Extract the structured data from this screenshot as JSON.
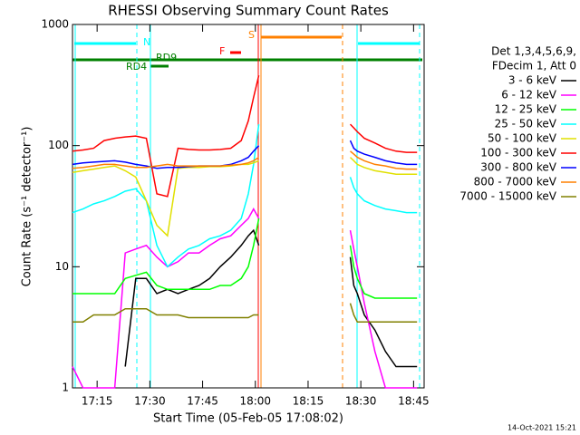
{
  "chart_data": {
    "type": "line",
    "title": "RHESSI Observing Summary Count Rates",
    "x_label": "Start Time (05-Feb-05 17:08:02)",
    "y_label": "Count Rate (s⁻¹ detector⁻¹)",
    "footer": "14-Oct-2021 15:21",
    "legend_title": [
      "Det 1,3,4,5,6,9,",
      "FDecim 1, Att 0"
    ],
    "legend_position": "right",
    "log_scale": true,
    "grid": false,
    "annotations": [
      "N",
      "S",
      "F",
      "RD4",
      "RD9"
    ],
    "x": [
      8,
      11,
      14,
      17,
      20,
      23,
      26,
      29,
      32,
      35,
      38,
      41,
      44,
      47,
      50,
      53,
      56,
      58,
      59.5,
      61,
      75,
      87,
      88,
      89,
      91,
      94,
      97,
      100,
      103,
      106
    ],
    "xlim": [
      8,
      108
    ],
    "xticks": [
      {
        "value": 15,
        "label": "17:15"
      },
      {
        "value": 30,
        "label": "17:30"
      },
      {
        "value": 45,
        "label": "17:45"
      },
      {
        "value": 60,
        "label": "18:00"
      },
      {
        "value": 75,
        "label": "18:15"
      },
      {
        "value": 90,
        "label": "18:30"
      },
      {
        "value": 105,
        "label": "18:45"
      }
    ],
    "ylim": [
      1,
      1000
    ],
    "yticks": [
      1,
      10,
      100,
      1000
    ],
    "series": [
      {
        "name": "3 - 6 keV",
        "color": "#000000",
        "values": [
          null,
          null,
          null,
          null,
          null,
          1.5,
          8,
          8,
          6,
          6.5,
          6,
          6.5,
          7,
          8,
          10,
          12,
          15,
          18,
          20,
          15,
          null,
          12,
          7,
          6,
          4,
          3,
          2,
          1.5,
          1.5,
          1.5
        ]
      },
      {
        "name": "6 - 12 keV",
        "color": "#ff00ff",
        "values": [
          1.5,
          1,
          1,
          1,
          1,
          13,
          14,
          15,
          12,
          10,
          11,
          13,
          13,
          15,
          17,
          18,
          22,
          25,
          30,
          25,
          null,
          20,
          14,
          10,
          5,
          2,
          1,
          1,
          1,
          1
        ]
      },
      {
        "name": "12 - 25 keV",
        "color": "#00ff00",
        "values": [
          6,
          6,
          6,
          6,
          6,
          8,
          8.5,
          9,
          7,
          6.5,
          6.5,
          6.5,
          6.5,
          6.5,
          7,
          7,
          8,
          10,
          15,
          25,
          null,
          15,
          10,
          8,
          6,
          5.5,
          5.5,
          5.5,
          5.5,
          5.5
        ]
      },
      {
        "name": "25 - 50 keV",
        "color": "#00ffff",
        "values": [
          28,
          30,
          33,
          35,
          38,
          42,
          44,
          35,
          15,
          10,
          12,
          14,
          15,
          17,
          18,
          20,
          25,
          40,
          70,
          150,
          null,
          55,
          45,
          40,
          35,
          32,
          30,
          29,
          28,
          28
        ]
      },
      {
        "name": "50 - 100 keV",
        "color": "#e0e000",
        "values": [
          60,
          62,
          64,
          66,
          68,
          62,
          55,
          35,
          22,
          18,
          65,
          66,
          66,
          67,
          67,
          68,
          70,
          70,
          72,
          75,
          null,
          80,
          75,
          70,
          66,
          62,
          60,
          58,
          58,
          58
        ]
      },
      {
        "name": "100 - 300 keV",
        "color": "#ff0000",
        "values": [
          90,
          92,
          95,
          110,
          115,
          118,
          120,
          115,
          40,
          38,
          95,
          93,
          92,
          92,
          93,
          95,
          110,
          160,
          250,
          380,
          null,
          150,
          140,
          130,
          115,
          105,
          95,
          90,
          88,
          88
        ]
      },
      {
        "name": "300 - 800 keV",
        "color": "#0000ff",
        "values": [
          70,
          72,
          73,
          74,
          75,
          73,
          70,
          68,
          65,
          66,
          66,
          67,
          68,
          68,
          68,
          70,
          75,
          80,
          90,
          100,
          null,
          110,
          95,
          90,
          85,
          80,
          75,
          72,
          70,
          70
        ]
      },
      {
        "name": "800 - 7000 keV",
        "color": "#ff8000",
        "values": [
          65,
          66,
          68,
          70,
          70,
          68,
          66,
          66,
          68,
          70,
          68,
          68,
          68,
          68,
          68,
          69,
          70,
          72,
          75,
          80,
          null,
          90,
          85,
          80,
          75,
          70,
          68,
          65,
          64,
          64
        ]
      },
      {
        "name": "7000 - 15000 keV",
        "color": "#808000",
        "values": [
          3.5,
          3.5,
          4,
          4,
          4,
          4.5,
          4.5,
          4.5,
          4,
          4,
          4,
          3.8,
          3.8,
          3.8,
          3.8,
          3.8,
          3.8,
          3.8,
          4,
          4,
          null,
          5,
          4,
          3.5,
          3.5,
          3.5,
          3.5,
          3.5,
          3.5,
          3.5
        ]
      }
    ]
  }
}
